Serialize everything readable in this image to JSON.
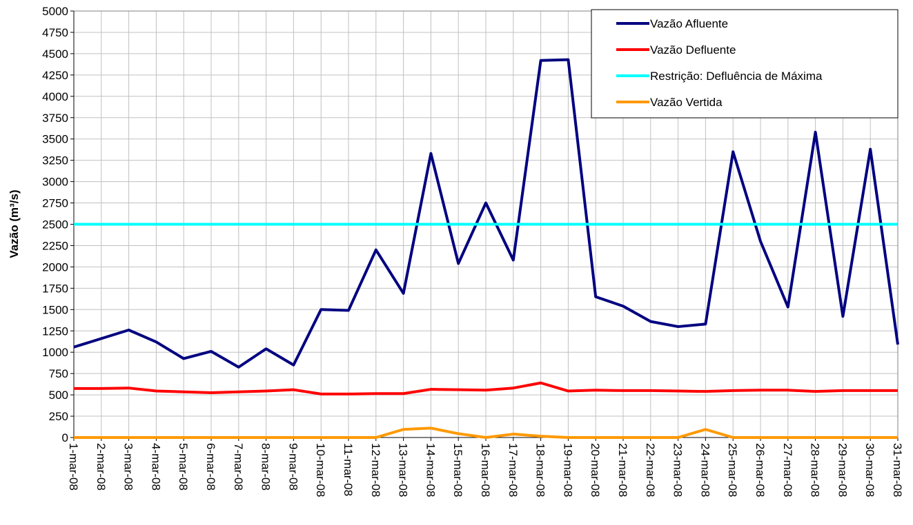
{
  "chart_data": {
    "type": "line",
    "y_label": "Vazão (m³/s)",
    "categories": [
      "1-mar-08",
      "2-mar-08",
      "3-mar-08",
      "4-mar-08",
      "5-mar-08",
      "6-mar-08",
      "7-mar-08",
      "8-mar-08",
      "9-mar-08",
      "10-mar-08",
      "11-mar-08",
      "12-mar-08",
      "13-mar-08",
      "14-mar-08",
      "15-mar-08",
      "16-mar-08",
      "17-mar-08",
      "18-mar-08",
      "19-mar-08",
      "20-mar-08",
      "21-mar-08",
      "22-mar-08",
      "23-mar-08",
      "24-mar-08",
      "25-mar-08",
      "26-mar-08",
      "27-mar-08",
      "28-mar-08",
      "29-mar-08",
      "30-mar-08",
      "31-mar-08"
    ],
    "series": [
      {
        "name": "Vazão Afluente",
        "color": "#000080",
        "values": [
          1060,
          1160,
          1260,
          1120,
          925,
          1010,
          825,
          1040,
          850,
          1500,
          1490,
          2200,
          1690,
          3330,
          2040,
          2750,
          2080,
          4420,
          4430,
          1650,
          1540,
          1360,
          1300,
          1330,
          3350,
          2300,
          1530,
          3580,
          1420,
          3380,
          1090
        ]
      },
      {
        "name": "Vazão Defluente",
        "color": "#ff0000",
        "values": [
          575,
          575,
          580,
          545,
          535,
          525,
          535,
          545,
          560,
          510,
          510,
          515,
          515,
          565,
          560,
          555,
          580,
          640,
          545,
          555,
          550,
          550,
          545,
          540,
          550,
          555,
          555,
          540,
          550,
          550,
          550
        ]
      },
      {
        "name": "Restrição: Defluência de Máxima",
        "color": "#00ffff",
        "values": [
          2500,
          2500,
          2500,
          2500,
          2500,
          2500,
          2500,
          2500,
          2500,
          2500,
          2500,
          2500,
          2500,
          2500,
          2500,
          2500,
          2500,
          2500,
          2500,
          2500,
          2500,
          2500,
          2500,
          2500,
          2500,
          2500,
          2500,
          2500,
          2500,
          2500,
          2500
        ]
      },
      {
        "name": "Vazão Vertida",
        "color": "#ff9900",
        "values": [
          0,
          0,
          0,
          0,
          0,
          0,
          0,
          0,
          0,
          0,
          0,
          0,
          95,
          110,
          45,
          0,
          40,
          15,
          0,
          0,
          0,
          0,
          0,
          95,
          0,
          0,
          0,
          0,
          0,
          0,
          0
        ]
      }
    ],
    "ylim": [
      0,
      5000
    ],
    "yticks": [
      0,
      250,
      500,
      750,
      1000,
      1250,
      1500,
      1750,
      2000,
      2250,
      2500,
      2750,
      3000,
      3250,
      3500,
      3750,
      4000,
      4250,
      4500,
      4750,
      5000
    ],
    "grid": true,
    "legend": "top-right"
  }
}
